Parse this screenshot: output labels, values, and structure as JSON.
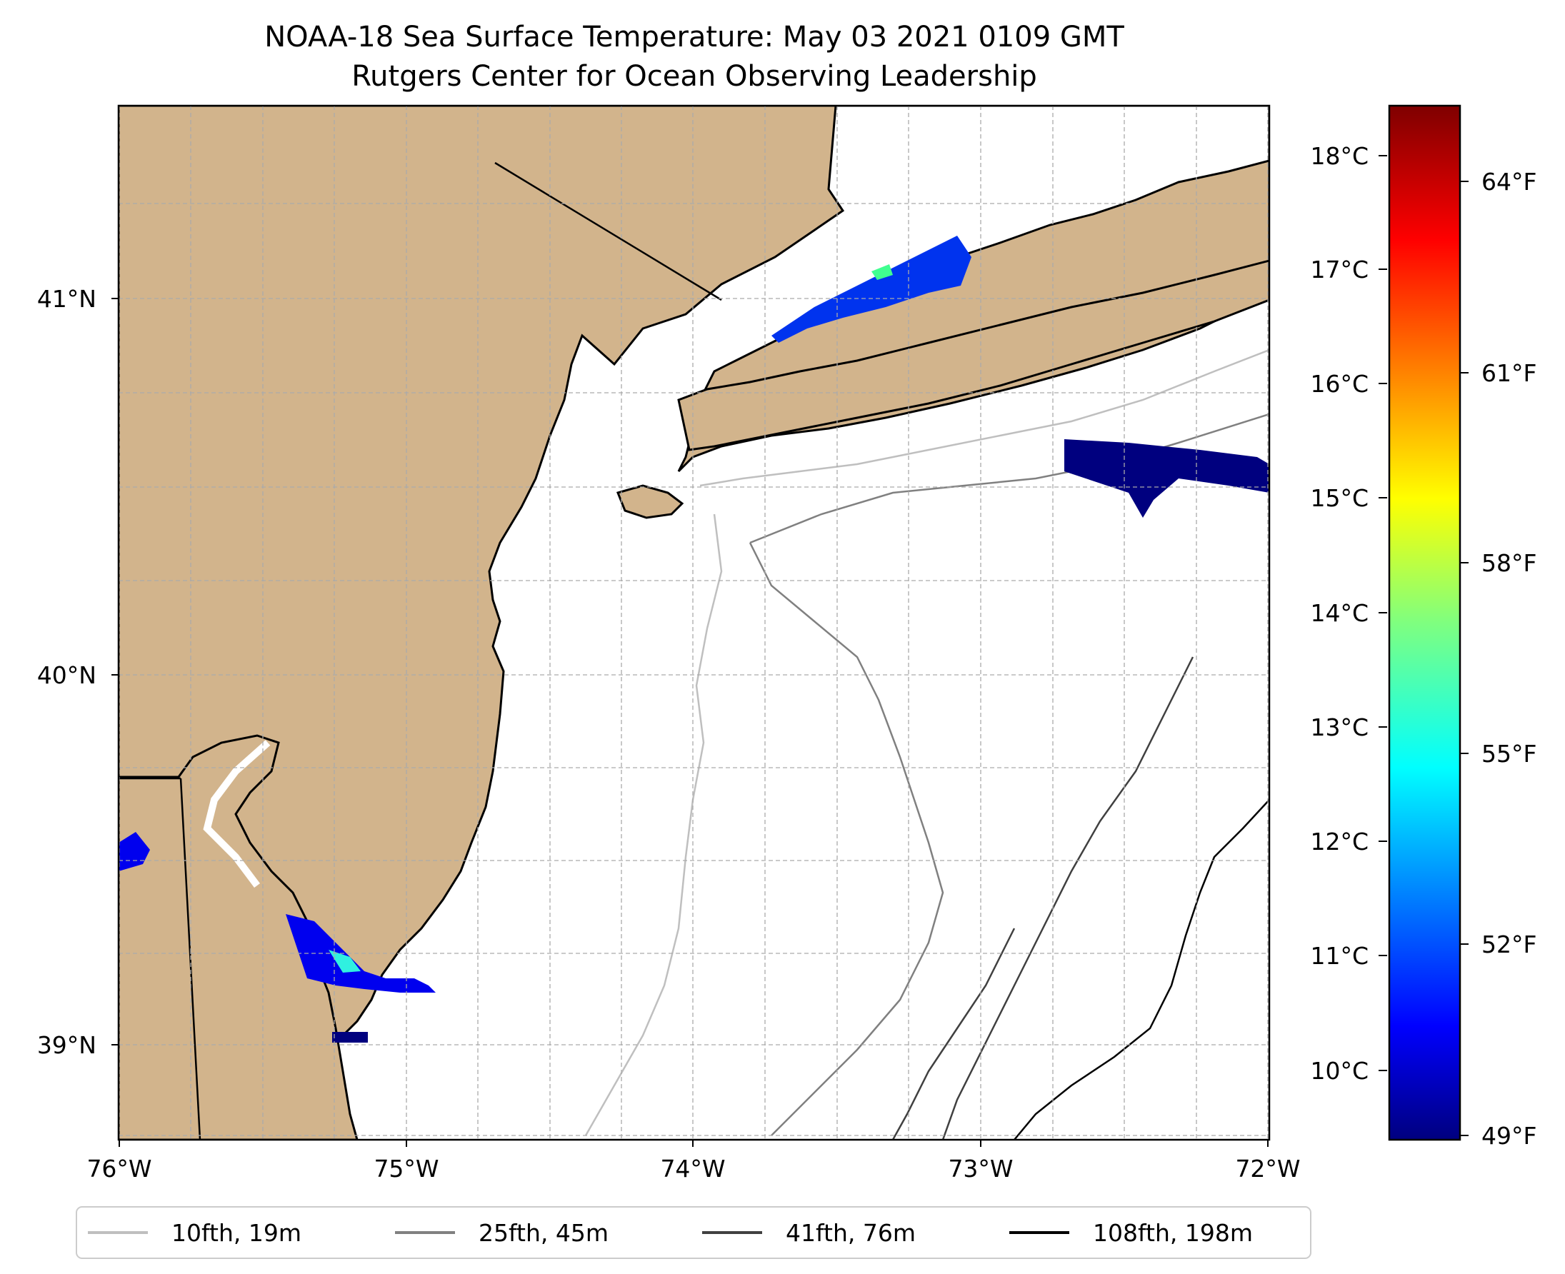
{
  "title": {
    "line1": "NOAA-18 Sea Surface Temperature: May 03 2021 0109 GMT",
    "line2": "Rutgers Center for Ocean Observing Leadership"
  },
  "map": {
    "land_color": "#d2b48c",
    "ocean_color": "#ffffff",
    "lon_range": [
      -76,
      -72
    ],
    "lat_range": [
      38.68,
      41.5
    ],
    "lon_ticks": [
      "76°W",
      "75°W",
      "74°W",
      "73°W",
      "72°W"
    ],
    "lat_ticks": [
      "41°N",
      "40°N",
      "39°N"
    ],
    "gridlines": "dashed"
  },
  "colorbar": {
    "colormap": "jet",
    "celsius_ticks": [
      "18°C",
      "17°C",
      "16°C",
      "15°C",
      "14°C",
      "13°C",
      "12°C",
      "11°C",
      "10°C"
    ],
    "fahrenheit_ticks": [
      "64°F",
      "61°F",
      "58°F",
      "55°F",
      "52°F",
      "49°F"
    ],
    "colors": [
      "#00007f",
      "#0000ff",
      "#007fff",
      "#00ffff",
      "#7fff7f",
      "#ffff00",
      "#ff7f00",
      "#ff0000",
      "#7f0000"
    ]
  },
  "legend": {
    "items": [
      {
        "label": "10fth, 19m",
        "color": "#bfbfbf"
      },
      {
        "label": "25fth, 45m",
        "color": "#808080"
      },
      {
        "label": "41fth, 76m",
        "color": "#404040"
      },
      {
        "label": "108fth, 198m",
        "color": "#000000"
      }
    ]
  }
}
